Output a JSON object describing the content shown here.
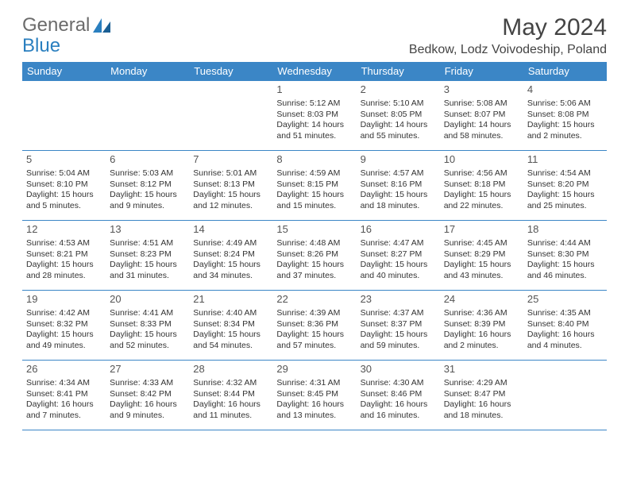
{
  "logo": {
    "word1": "General",
    "word2": "Blue"
  },
  "title": "May 2024",
  "subtitle": "Bedkow, Lodz Voivodeship, Poland",
  "colors": {
    "header_bg": "#3b86c6",
    "header_fg": "#ffffff",
    "border": "#3b86c6",
    "logo_gray": "#6b6b6b",
    "logo_blue": "#2a7fbf",
    "text": "#333333"
  },
  "day_headers": [
    "Sunday",
    "Monday",
    "Tuesday",
    "Wednesday",
    "Thursday",
    "Friday",
    "Saturday"
  ],
  "weeks": [
    [
      {
        "n": "",
        "sunrise": "",
        "sunset": "",
        "daylight": ""
      },
      {
        "n": "",
        "sunrise": "",
        "sunset": "",
        "daylight": ""
      },
      {
        "n": "",
        "sunrise": "",
        "sunset": "",
        "daylight": ""
      },
      {
        "n": "1",
        "sunrise": "Sunrise: 5:12 AM",
        "sunset": "Sunset: 8:03 PM",
        "daylight": "Daylight: 14 hours and 51 minutes."
      },
      {
        "n": "2",
        "sunrise": "Sunrise: 5:10 AM",
        "sunset": "Sunset: 8:05 PM",
        "daylight": "Daylight: 14 hours and 55 minutes."
      },
      {
        "n": "3",
        "sunrise": "Sunrise: 5:08 AM",
        "sunset": "Sunset: 8:07 PM",
        "daylight": "Daylight: 14 hours and 58 minutes."
      },
      {
        "n": "4",
        "sunrise": "Sunrise: 5:06 AM",
        "sunset": "Sunset: 8:08 PM",
        "daylight": "Daylight: 15 hours and 2 minutes."
      }
    ],
    [
      {
        "n": "5",
        "sunrise": "Sunrise: 5:04 AM",
        "sunset": "Sunset: 8:10 PM",
        "daylight": "Daylight: 15 hours and 5 minutes."
      },
      {
        "n": "6",
        "sunrise": "Sunrise: 5:03 AM",
        "sunset": "Sunset: 8:12 PM",
        "daylight": "Daylight: 15 hours and 9 minutes."
      },
      {
        "n": "7",
        "sunrise": "Sunrise: 5:01 AM",
        "sunset": "Sunset: 8:13 PM",
        "daylight": "Daylight: 15 hours and 12 minutes."
      },
      {
        "n": "8",
        "sunrise": "Sunrise: 4:59 AM",
        "sunset": "Sunset: 8:15 PM",
        "daylight": "Daylight: 15 hours and 15 minutes."
      },
      {
        "n": "9",
        "sunrise": "Sunrise: 4:57 AM",
        "sunset": "Sunset: 8:16 PM",
        "daylight": "Daylight: 15 hours and 18 minutes."
      },
      {
        "n": "10",
        "sunrise": "Sunrise: 4:56 AM",
        "sunset": "Sunset: 8:18 PM",
        "daylight": "Daylight: 15 hours and 22 minutes."
      },
      {
        "n": "11",
        "sunrise": "Sunrise: 4:54 AM",
        "sunset": "Sunset: 8:20 PM",
        "daylight": "Daylight: 15 hours and 25 minutes."
      }
    ],
    [
      {
        "n": "12",
        "sunrise": "Sunrise: 4:53 AM",
        "sunset": "Sunset: 8:21 PM",
        "daylight": "Daylight: 15 hours and 28 minutes."
      },
      {
        "n": "13",
        "sunrise": "Sunrise: 4:51 AM",
        "sunset": "Sunset: 8:23 PM",
        "daylight": "Daylight: 15 hours and 31 minutes."
      },
      {
        "n": "14",
        "sunrise": "Sunrise: 4:49 AM",
        "sunset": "Sunset: 8:24 PM",
        "daylight": "Daylight: 15 hours and 34 minutes."
      },
      {
        "n": "15",
        "sunrise": "Sunrise: 4:48 AM",
        "sunset": "Sunset: 8:26 PM",
        "daylight": "Daylight: 15 hours and 37 minutes."
      },
      {
        "n": "16",
        "sunrise": "Sunrise: 4:47 AM",
        "sunset": "Sunset: 8:27 PM",
        "daylight": "Daylight: 15 hours and 40 minutes."
      },
      {
        "n": "17",
        "sunrise": "Sunrise: 4:45 AM",
        "sunset": "Sunset: 8:29 PM",
        "daylight": "Daylight: 15 hours and 43 minutes."
      },
      {
        "n": "18",
        "sunrise": "Sunrise: 4:44 AM",
        "sunset": "Sunset: 8:30 PM",
        "daylight": "Daylight: 15 hours and 46 minutes."
      }
    ],
    [
      {
        "n": "19",
        "sunrise": "Sunrise: 4:42 AM",
        "sunset": "Sunset: 8:32 PM",
        "daylight": "Daylight: 15 hours and 49 minutes."
      },
      {
        "n": "20",
        "sunrise": "Sunrise: 4:41 AM",
        "sunset": "Sunset: 8:33 PM",
        "daylight": "Daylight: 15 hours and 52 minutes."
      },
      {
        "n": "21",
        "sunrise": "Sunrise: 4:40 AM",
        "sunset": "Sunset: 8:34 PM",
        "daylight": "Daylight: 15 hours and 54 minutes."
      },
      {
        "n": "22",
        "sunrise": "Sunrise: 4:39 AM",
        "sunset": "Sunset: 8:36 PM",
        "daylight": "Daylight: 15 hours and 57 minutes."
      },
      {
        "n": "23",
        "sunrise": "Sunrise: 4:37 AM",
        "sunset": "Sunset: 8:37 PM",
        "daylight": "Daylight: 15 hours and 59 minutes."
      },
      {
        "n": "24",
        "sunrise": "Sunrise: 4:36 AM",
        "sunset": "Sunset: 8:39 PM",
        "daylight": "Daylight: 16 hours and 2 minutes."
      },
      {
        "n": "25",
        "sunrise": "Sunrise: 4:35 AM",
        "sunset": "Sunset: 8:40 PM",
        "daylight": "Daylight: 16 hours and 4 minutes."
      }
    ],
    [
      {
        "n": "26",
        "sunrise": "Sunrise: 4:34 AM",
        "sunset": "Sunset: 8:41 PM",
        "daylight": "Daylight: 16 hours and 7 minutes."
      },
      {
        "n": "27",
        "sunrise": "Sunrise: 4:33 AM",
        "sunset": "Sunset: 8:42 PM",
        "daylight": "Daylight: 16 hours and 9 minutes."
      },
      {
        "n": "28",
        "sunrise": "Sunrise: 4:32 AM",
        "sunset": "Sunset: 8:44 PM",
        "daylight": "Daylight: 16 hours and 11 minutes."
      },
      {
        "n": "29",
        "sunrise": "Sunrise: 4:31 AM",
        "sunset": "Sunset: 8:45 PM",
        "daylight": "Daylight: 16 hours and 13 minutes."
      },
      {
        "n": "30",
        "sunrise": "Sunrise: 4:30 AM",
        "sunset": "Sunset: 8:46 PM",
        "daylight": "Daylight: 16 hours and 16 minutes."
      },
      {
        "n": "31",
        "sunrise": "Sunrise: 4:29 AM",
        "sunset": "Sunset: 8:47 PM",
        "daylight": "Daylight: 16 hours and 18 minutes."
      },
      {
        "n": "",
        "sunrise": "",
        "sunset": "",
        "daylight": ""
      }
    ]
  ]
}
